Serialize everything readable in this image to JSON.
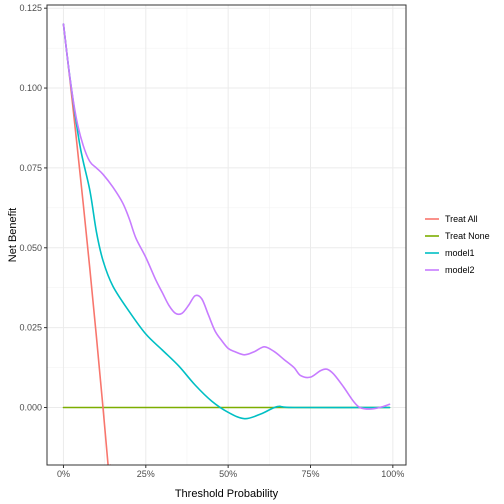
{
  "chart_data": {
    "type": "line",
    "title": "",
    "xlabel": "Threshold Probability",
    "ylabel": "Net Benefit",
    "xlim": [
      -0.05,
      1.04
    ],
    "ylim": [
      -0.018,
      0.126
    ],
    "grid": true,
    "legend_position": "right",
    "x_ticks": [
      {
        "value": 0,
        "label": "0%"
      },
      {
        "value": 0.25,
        "label": "25%"
      },
      {
        "value": 0.5,
        "label": "50%"
      },
      {
        "value": 0.75,
        "label": "75%"
      },
      {
        "value": 1,
        "label": "100%"
      }
    ],
    "y_ticks": [
      {
        "value": 0,
        "label": "0.000"
      },
      {
        "value": 0.025,
        "label": "0.025"
      },
      {
        "value": 0.05,
        "label": "0.050"
      },
      {
        "value": 0.075,
        "label": "0.075"
      },
      {
        "value": 0.1,
        "label": "0.100"
      },
      {
        "value": 0.125,
        "label": "0.125"
      }
    ],
    "series": [
      {
        "name": "Treat All",
        "color": "#F8766D",
        "points": [
          [
            0,
            0.12
          ],
          [
            0.02,
            0.1023
          ],
          [
            0.04,
            0.0833
          ],
          [
            0.06,
            0.0638
          ],
          [
            0.08,
            0.0435
          ],
          [
            0.1,
            0.0222
          ],
          [
            0.12,
            0.0
          ],
          [
            0.14,
            -0.0233
          ],
          [
            0.143,
            -0.018
          ]
        ]
      },
      {
        "name": "Treat None",
        "color": "#7CAE00",
        "points": [
          [
            0,
            0
          ],
          [
            0.99,
            0
          ]
        ]
      },
      {
        "name": "model1",
        "color": "#00BFC4",
        "points": [
          [
            0,
            0.12
          ],
          [
            0.02,
            0.103
          ],
          [
            0.05,
            0.082
          ],
          [
            0.08,
            0.068
          ],
          [
            0.1,
            0.055
          ],
          [
            0.12,
            0.046
          ],
          [
            0.15,
            0.038
          ],
          [
            0.2,
            0.03
          ],
          [
            0.25,
            0.023
          ],
          [
            0.3,
            0.018
          ],
          [
            0.35,
            0.013
          ],
          [
            0.4,
            0.007
          ],
          [
            0.45,
            0.002
          ],
          [
            0.5,
            -0.0015
          ],
          [
            0.55,
            -0.0035
          ],
          [
            0.6,
            -0.002
          ],
          [
            0.65,
            0.0003
          ],
          [
            0.7,
            0.0
          ],
          [
            0.99,
            0.0
          ]
        ]
      },
      {
        "name": "model2",
        "color": "#C77CFF",
        "points": [
          [
            0,
            0.12
          ],
          [
            0.02,
            0.103
          ],
          [
            0.04,
            0.09
          ],
          [
            0.06,
            0.082
          ],
          [
            0.08,
            0.077
          ],
          [
            0.1,
            0.075
          ],
          [
            0.12,
            0.073
          ],
          [
            0.15,
            0.069
          ],
          [
            0.18,
            0.064
          ],
          [
            0.2,
            0.059
          ],
          [
            0.22,
            0.053
          ],
          [
            0.25,
            0.047
          ],
          [
            0.28,
            0.04
          ],
          [
            0.3,
            0.036
          ],
          [
            0.32,
            0.032
          ],
          [
            0.34,
            0.0295
          ],
          [
            0.36,
            0.0295
          ],
          [
            0.38,
            0.032
          ],
          [
            0.4,
            0.035
          ],
          [
            0.42,
            0.034
          ],
          [
            0.44,
            0.029
          ],
          [
            0.46,
            0.024
          ],
          [
            0.48,
            0.021
          ],
          [
            0.5,
            0.0185
          ],
          [
            0.52,
            0.0175
          ],
          [
            0.55,
            0.0165
          ],
          [
            0.58,
            0.0175
          ],
          [
            0.61,
            0.019
          ],
          [
            0.64,
            0.0175
          ],
          [
            0.67,
            0.015
          ],
          [
            0.7,
            0.0125
          ],
          [
            0.72,
            0.01
          ],
          [
            0.75,
            0.0095
          ],
          [
            0.78,
            0.0115
          ],
          [
            0.8,
            0.012
          ],
          [
            0.82,
            0.0105
          ],
          [
            0.85,
            0.0065
          ],
          [
            0.88,
            0.002
          ],
          [
            0.9,
            0.0
          ],
          [
            0.93,
            -0.0005
          ],
          [
            0.96,
            0.0
          ],
          [
            0.99,
            0.001
          ]
        ]
      }
    ]
  }
}
